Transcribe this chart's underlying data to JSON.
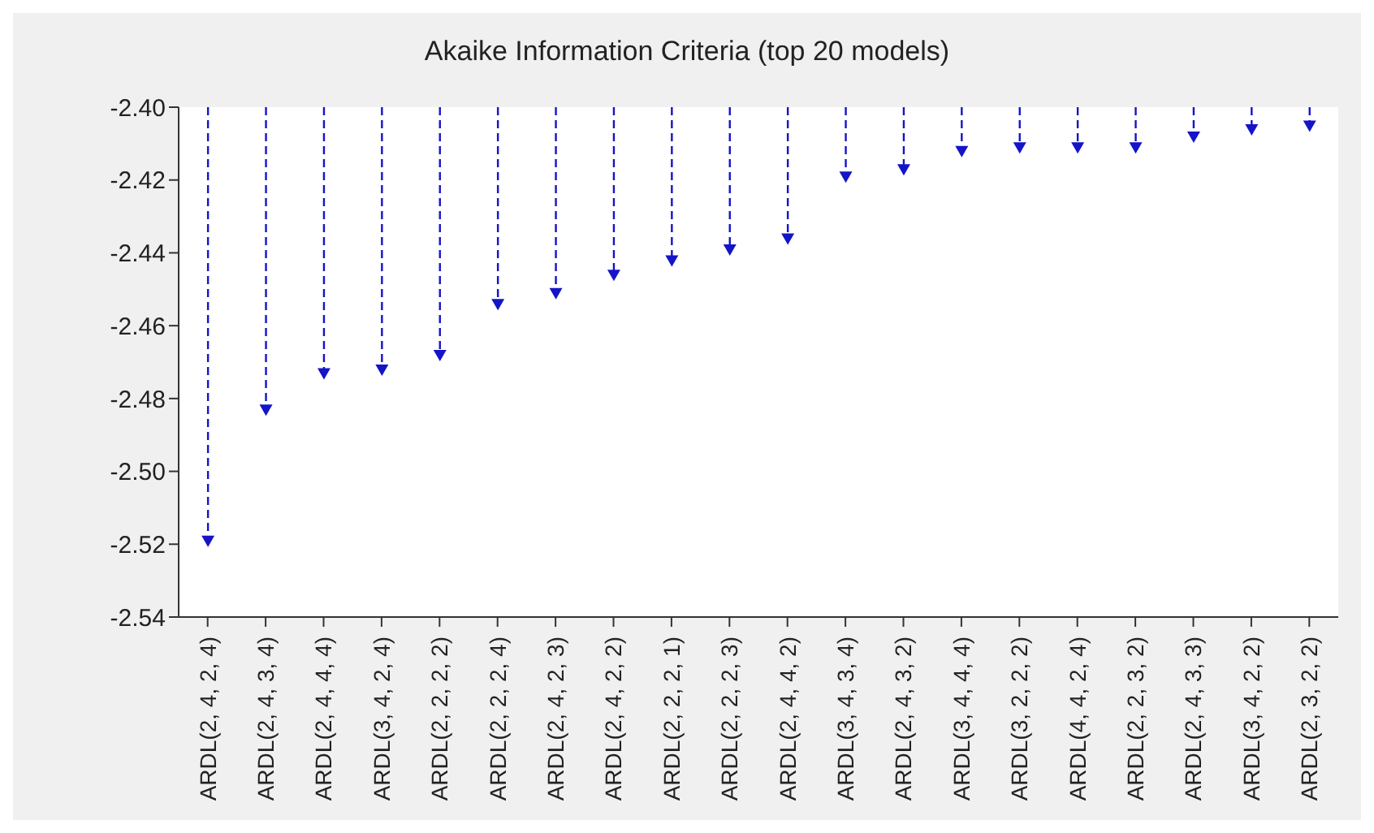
{
  "chart_data": {
    "type": "lollipop",
    "title": "Akaike Information Criteria (top 20 models)",
    "categories": [
      "ARDL(2, 4, 2, 4)",
      "ARDL(2, 4, 3, 4)",
      "ARDL(2, 4, 4, 4)",
      "ARDL(3, 4, 2, 4)",
      "ARDL(2, 2, 2, 2)",
      "ARDL(2, 2, 2, 4)",
      "ARDL(2, 4, 2, 3)",
      "ARDL(2, 4, 2, 2)",
      "ARDL(2, 2, 2, 1)",
      "ARDL(2, 2, 2, 3)",
      "ARDL(2, 4, 4, 2)",
      "ARDL(3, 4, 3, 4)",
      "ARDL(2, 4, 3, 2)",
      "ARDL(3, 4, 4, 4)",
      "ARDL(3, 2, 2, 2)",
      "ARDL(4, 4, 2, 4)",
      "ARDL(2, 2, 3, 2)",
      "ARDL(2, 4, 3, 3)",
      "ARDL(3, 4, 2, 2)",
      "ARDL(2, 3, 2, 2)"
    ],
    "values": [
      -2.519,
      -2.483,
      -2.473,
      -2.472,
      -2.468,
      -2.454,
      -2.451,
      -2.446,
      -2.442,
      -2.439,
      -2.436,
      -2.419,
      -2.417,
      -2.412,
      -2.411,
      -2.411,
      -2.411,
      -2.408,
      -2.406,
      -2.405
    ],
    "color": "#1414c8",
    "ylim": [
      -2.54,
      -2.4
    ],
    "yticks": [
      -2.54,
      -2.52,
      {
        "value": -2.5,
        "label": "-2.50"
      },
      -2.48,
      -2.46,
      -2.44,
      -2.42,
      {
        "value": -2.4,
        "label": "-2.40"
      }
    ],
    "marker": "triangle",
    "line_style": "dashed"
  }
}
